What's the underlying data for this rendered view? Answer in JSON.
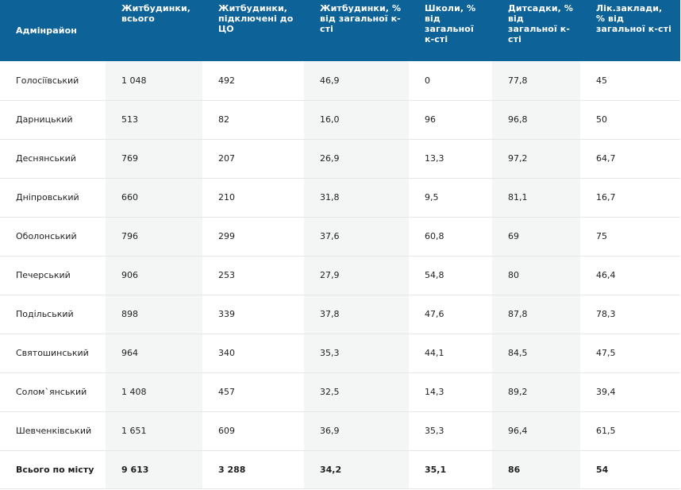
{
  "table": {
    "headers": [
      "Адмінрайон",
      "Житбудинки, всього",
      "Житбудинки, підключені до ЦО",
      "Житбудинки, % від загальної к-сті",
      "Школи, % від загальної к-сті",
      "Дитсадки, % від загальної к-сті",
      "Лік.заклади, % від загальної к-сті"
    ],
    "rows": [
      [
        "Голосіївський",
        "1 048",
        "492",
        "46,9",
        "0",
        "77,8",
        "45"
      ],
      [
        "Дарницький",
        "513",
        "82",
        "16,0",
        "96",
        "96,8",
        "50"
      ],
      [
        "Деснянський",
        "769",
        "207",
        "26,9",
        "13,3",
        "97,2",
        "64,7"
      ],
      [
        "Дніпровський",
        "660",
        "210",
        "31,8",
        "9,5",
        "81,1",
        "16,7"
      ],
      [
        "Оболонський",
        "796",
        "299",
        "37,6",
        "60,8",
        "69",
        "75"
      ],
      [
        "Печерський",
        "906",
        "253",
        "27,9",
        "54,8",
        "80",
        "46,4"
      ],
      [
        "Подільський",
        "898",
        "339",
        "37,8",
        "47,6",
        "87,8",
        "78,3"
      ],
      [
        "Святошинський",
        "964",
        "340",
        "35,3",
        "44,1",
        "84,5",
        "47,5"
      ],
      [
        "Солом`янський",
        "1 408",
        "457",
        "32,5",
        "14,3",
        "89,2",
        "39,4"
      ],
      [
        "Шевченківський",
        "1 651",
        "609",
        "36,9",
        "35,3",
        "96,4",
        "61,5"
      ]
    ],
    "total_row": [
      "Всього по місту",
      "9 613",
      "3 288",
      "34,2",
      "35,1",
      "86",
      "54"
    ]
  },
  "colors": {
    "header_bg": "#0d6298",
    "header_text": "#ffffff",
    "shaded_column": "#f4f5f5",
    "row_divider": "#e6e6e6"
  }
}
